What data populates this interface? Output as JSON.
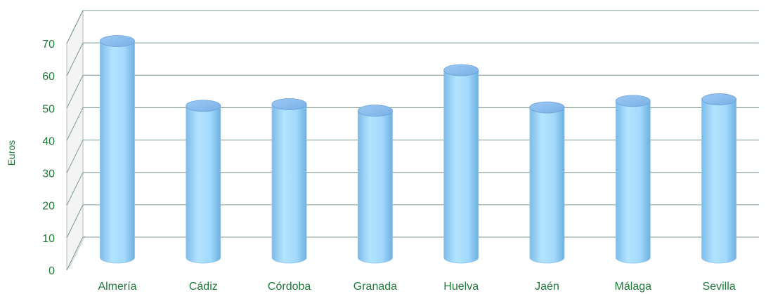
{
  "colors": {
    "text": "#1f7a3a",
    "grid": "#7a9a8a",
    "wall": "#b8b8b8",
    "bar_light": "#a9deff",
    "bar_mid": "#8fcdf6",
    "bar_dark": "#6eaee0",
    "bar_top": "#8bbcf0",
    "bar_top_edge": "#6a9fd8"
  },
  "chart_data": {
    "type": "bar",
    "style": "3d-cylinder",
    "ylabel": "Euros",
    "xlabel": "",
    "ylim": [
      0,
      70
    ],
    "yticks": [
      0,
      10,
      20,
      30,
      40,
      50,
      60,
      70
    ],
    "grid": true,
    "legend": "none",
    "categories": [
      "Almería",
      "Cádiz",
      "Córdoba",
      "Granada",
      "Huelva",
      "Jaén",
      "Málaga",
      "Sevilla"
    ],
    "values": [
      70,
      50,
      50.5,
      48.5,
      61,
      49.5,
      51.5,
      52
    ]
  }
}
